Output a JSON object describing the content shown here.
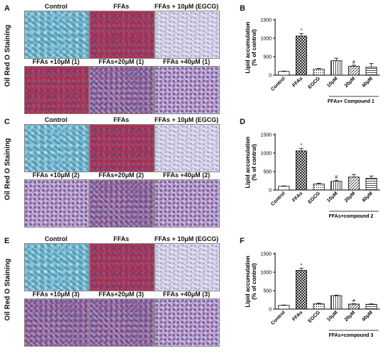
{
  "figure": {
    "side_label": "Oil Red O Staining",
    "rows": [
      {
        "letter": "A",
        "labels": [
          "Control",
          "FFAs",
          "FFAs + 10μM (EGCG)",
          "FFAs +10μM (1)",
          "FFAs+20μM (1)",
          "FFAs +40μM (1)"
        ],
        "tints": [
          "blue",
          "red",
          "pale",
          "red",
          "mixed",
          "violet"
        ]
      },
      {
        "letter": "C",
        "labels": [
          "Control",
          "FFAs",
          "FFAs + 10μM (EGCG)",
          "FFAs +10μM (2)",
          "FFAs+20μM (2)",
          "FFAs +40μM (2)"
        ],
        "tints": [
          "blue",
          "red",
          "pale",
          "violet",
          "mixed",
          "violet"
        ]
      },
      {
        "letter": "E",
        "labels": [
          "Control",
          "FFAs",
          "FFAs + 10μM (EGCG)",
          "FFAs +10μM (3)",
          "FFAs+20μM (3)",
          "FFAs +40μM (3)"
        ],
        "tints": [
          "blue",
          "red",
          "pale",
          "mixed",
          "mixed",
          "violet"
        ]
      }
    ]
  },
  "chart_data": [
    {
      "panel": "B",
      "type": "bar",
      "ylabel": "Lipid accumulation\n(% of control)",
      "ylim": [
        0,
        1500
      ],
      "yticks": [
        0,
        500,
        1000,
        1500
      ],
      "categories": [
        "Control",
        "FFAs",
        "EGCG",
        "10μM",
        "20μM",
        "40μM"
      ],
      "values": [
        100,
        1060,
        160,
        390,
        240,
        215
      ],
      "errors": [
        10,
        70,
        20,
        70,
        30,
        100
      ],
      "annotations": [
        "",
        "*",
        "",
        "",
        "#",
        ""
      ],
      "group_label": "FFAs+ Compound 1"
    },
    {
      "panel": "D",
      "type": "bar",
      "ylabel": "Lipid accumulation\n(% of control)",
      "ylim": [
        0,
        1500
      ],
      "yticks": [
        0,
        500,
        1000,
        1500
      ],
      "categories": [
        "Control",
        "FFAs",
        "EGCG",
        "10μM",
        "20μM",
        "40μM"
      ],
      "values": [
        100,
        1060,
        160,
        235,
        350,
        320
      ],
      "errors": [
        10,
        70,
        20,
        30,
        70,
        60
      ],
      "annotations": [
        "",
        "*",
        "",
        "#",
        "",
        ""
      ],
      "group_label": "FFAs+compound 2"
    },
    {
      "panel": "F",
      "type": "bar",
      "ylabel": "Lipid accumulation\n(% of control)",
      "ylim": [
        0,
        1500
      ],
      "yticks": [
        0,
        500,
        1000,
        1500
      ],
      "categories": [
        "Control",
        "FFAs",
        "EGCG",
        "10μM",
        "20μM",
        "40μM"
      ],
      "values": [
        100,
        1050,
        140,
        365,
        135,
        130
      ],
      "errors": [
        10,
        60,
        20,
        15,
        10,
        10
      ],
      "annotations": [
        "",
        "*",
        "",
        "",
        "#",
        ""
      ],
      "group_label": "FFAs+compound 3"
    }
  ],
  "colors": {
    "bar_fill": "#ffffff",
    "axis": "#000000"
  }
}
